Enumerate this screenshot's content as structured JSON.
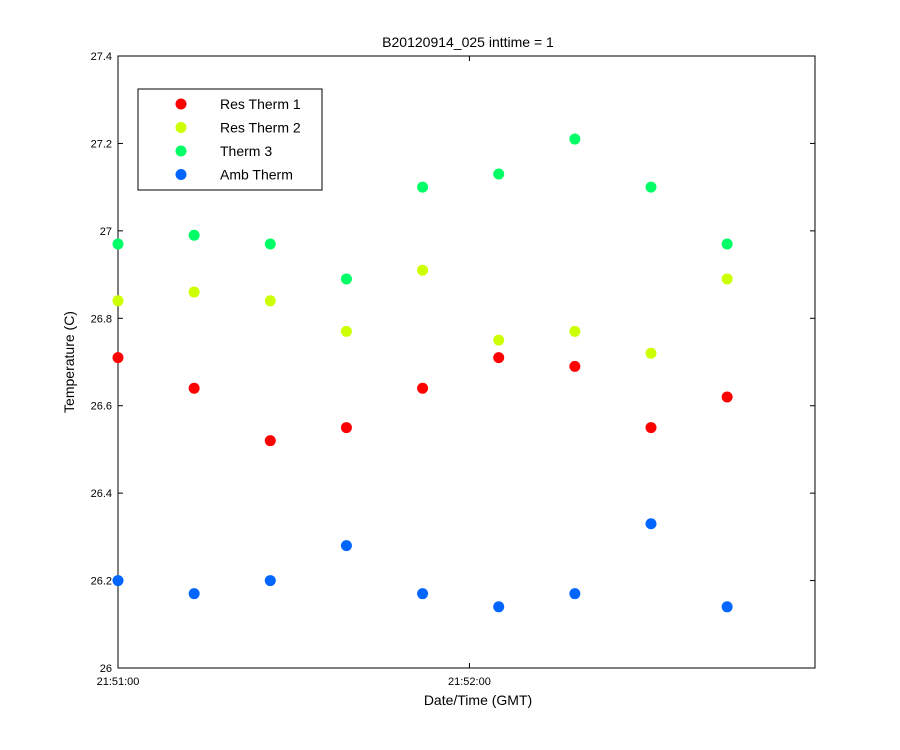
{
  "chart_data": {
    "type": "scatter",
    "title": "B20120914_025 inttime = 1",
    "xlabel": "Date/Time (GMT)",
    "ylabel": "Temperature (C)",
    "x_unit": "time (GMT)",
    "xlim": [
      "21:51:00",
      "21:52:59"
    ],
    "ylim": [
      26,
      27.4
    ],
    "x_ticks": [
      "21:51:00",
      "21:52:00"
    ],
    "y_ticks": [
      26,
      26.2,
      26.4,
      26.6,
      26.8,
      27,
      27.2,
      27.4
    ],
    "y_tick_labels": [
      "26",
      "26.2",
      "26.4",
      "26.6",
      "26.8",
      "27",
      "27.2",
      "27.4"
    ],
    "grid": false,
    "legend_position": "top-left",
    "x": [
      "21:51:00",
      "21:51:13",
      "21:51:26",
      "21:51:39",
      "21:51:52",
      "21:52:05",
      "21:52:18",
      "21:52:31",
      "21:52:44"
    ],
    "series": [
      {
        "name": "Res Therm 1",
        "color": "#ff0000",
        "values": [
          26.71,
          26.64,
          26.52,
          26.55,
          26.64,
          26.71,
          26.69,
          26.55,
          26.62
        ]
      },
      {
        "name": "Res Therm 2",
        "color": "#ccff00",
        "values": [
          26.84,
          26.86,
          26.84,
          26.77,
          26.91,
          26.75,
          26.77,
          26.72,
          26.89
        ]
      },
      {
        "name": "Therm 3",
        "color": "#00ff66",
        "values": [
          26.97,
          26.99,
          26.97,
          26.89,
          27.1,
          27.13,
          27.21,
          27.1,
          26.97
        ]
      },
      {
        "name": "Amb Therm",
        "color": "#0066ff",
        "values": [
          26.2,
          26.17,
          26.2,
          26.28,
          26.17,
          26.14,
          26.17,
          26.33,
          26.14
        ]
      }
    ]
  }
}
